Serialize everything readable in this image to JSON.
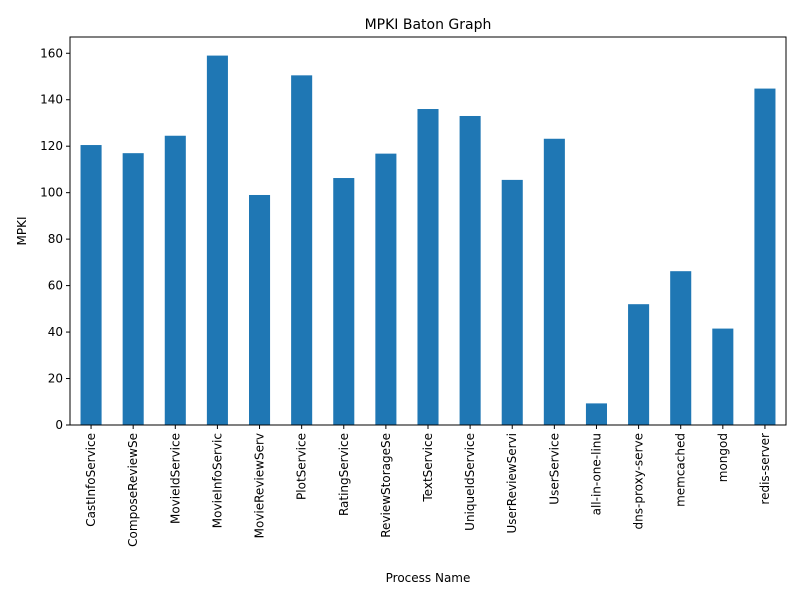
{
  "chart_data": {
    "type": "bar",
    "title": "MPKI Baton Graph",
    "xlabel": "Process Name",
    "ylabel": "MPKI",
    "categories": [
      "CastInfoService",
      "ComposeReviewSe",
      "MovieIdService",
      "MovieInfoServic",
      "MovieReviewServ",
      "PlotService",
      "RatingService",
      "ReviewStorageSe",
      "TextService",
      "UniqueIdService",
      "UserReviewServi",
      "UserService",
      "all-in-one-linu",
      "dns-proxy-serve",
      "memcached",
      "mongod",
      "redis-server"
    ],
    "values": [
      120.5,
      117,
      124.5,
      159,
      99,
      150.5,
      106.3,
      116.8,
      136,
      133,
      105.5,
      123.2,
      9.3,
      52,
      66.2,
      41.5,
      144.8
    ],
    "ylim": [
      0,
      167
    ],
    "yticks": [
      0,
      20,
      40,
      60,
      80,
      100,
      120,
      140,
      160
    ],
    "bar_color": "#1f77b4",
    "grid": false,
    "legend": "none"
  }
}
